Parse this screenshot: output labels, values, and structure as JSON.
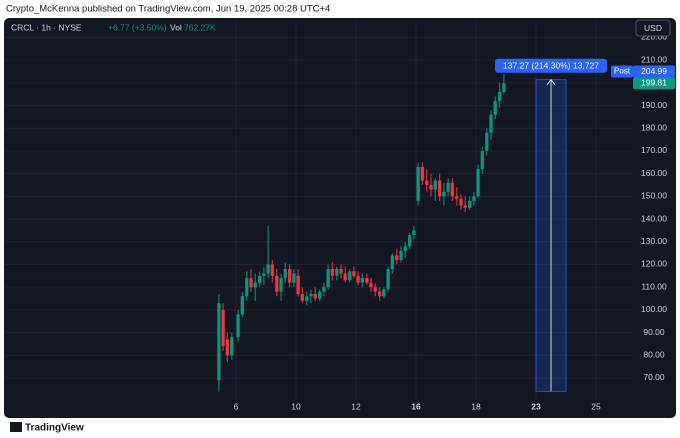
{
  "chart_data": {
    "type": "candlestick",
    "attribution": "Crypto_McKenna published on TradingView.com, Jun 19, 2025 00:28 UTC+4",
    "symbol": "CRCL · 1h · NYSE",
    "change": "+6.77 (+3.50%)",
    "volume_label": "Vol",
    "volume": "762.27K",
    "currency": "USD",
    "brand": "TradingView",
    "up_color": "#089981",
    "down_color": "#f23645",
    "grid": true,
    "xlim": [
      -6.7,
      14.2
    ],
    "xticks": [
      {
        "value": 1,
        "label": "6"
      },
      {
        "value": 3,
        "label": "10"
      },
      {
        "value": 5,
        "label": "12"
      },
      {
        "value": 7,
        "label": "16"
      },
      {
        "value": 9,
        "label": "18"
      },
      {
        "value": 11,
        "label": "23"
      },
      {
        "value": 13,
        "label": "25"
      }
    ],
    "ylim": [
      60.3,
      227.7
    ],
    "yticks": [
      {
        "value": 70,
        "label": "70.00"
      },
      {
        "value": 80,
        "label": "80.00"
      },
      {
        "value": 90,
        "label": "90.00"
      },
      {
        "value": 100,
        "label": "100.00"
      },
      {
        "value": 110,
        "label": "110.00"
      },
      {
        "value": 120,
        "label": "120.00"
      },
      {
        "value": 130,
        "label": "130.00"
      },
      {
        "value": 140,
        "label": "140.00"
      },
      {
        "value": 150,
        "label": "150.00"
      },
      {
        "value": 160,
        "label": "160.00"
      },
      {
        "value": 170,
        "label": "170.00"
      },
      {
        "value": 180,
        "label": "180.00"
      },
      {
        "value": 190,
        "label": "190.00"
      },
      {
        "value": 200,
        "label": "200.00"
      },
      {
        "value": 210,
        "label": "210.00"
      },
      {
        "value": 220,
        "label": "220.00"
      }
    ],
    "x": [
      0.43,
      0.57,
      0.71,
      0.86,
      1.07,
      1.21,
      1.36,
      1.5,
      1.64,
      1.79,
      1.93,
      2.07,
      2.21,
      2.36,
      2.5,
      2.64,
      2.79,
      2.93,
      3.07,
      3.21,
      3.36,
      3.5,
      3.64,
      3.79,
      3.93,
      4.07,
      4.21,
      4.36,
      4.5,
      4.64,
      4.79,
      4.93,
      5.07,
      5.21,
      5.36,
      5.5,
      5.64,
      5.79,
      5.93,
      6.07,
      6.21,
      6.36,
      6.5,
      6.64,
      6.79,
      6.93,
      7.07,
      7.21,
      7.36,
      7.5,
      7.64,
      7.79,
      7.93,
      8.07,
      8.21,
      8.36,
      8.5,
      8.64,
      8.79,
      8.93,
      9.07,
      9.21,
      9.36,
      9.5,
      9.64,
      9.79,
      9.93
    ],
    "open": [
      69,
      100,
      87,
      80,
      88,
      98,
      106,
      114,
      110,
      112,
      115,
      116,
      120,
      115,
      108,
      114,
      118,
      112,
      115,
      107,
      104,
      106,
      107,
      105,
      108,
      110,
      118,
      115,
      118,
      116,
      113,
      117,
      115,
      112,
      114,
      112,
      110,
      108,
      106,
      109,
      118,
      124,
      122,
      126,
      128,
      133,
      148,
      163,
      157,
      155,
      153,
      157,
      150,
      152,
      156,
      150,
      149,
      146,
      145,
      148,
      150,
      162,
      170,
      178,
      186,
      192,
      196
    ],
    "high": [
      107,
      103,
      90,
      90,
      100,
      108,
      117,
      118,
      116,
      117,
      119,
      137,
      122,
      118,
      116,
      121,
      120,
      118,
      118,
      110,
      108,
      109,
      110,
      109,
      112,
      120,
      121,
      119,
      120,
      119,
      118,
      119,
      117,
      116,
      116,
      114,
      112,
      110,
      110,
      119,
      125,
      127,
      128,
      130,
      134,
      137,
      165,
      165,
      162,
      160,
      158,
      160,
      156,
      158,
      158,
      154,
      151,
      150,
      150,
      152,
      164,
      172,
      180,
      188,
      194,
      200,
      204
    ],
    "low": [
      64,
      82,
      77,
      78,
      86,
      97,
      104,
      108,
      104,
      110,
      111,
      114,
      112,
      106,
      104,
      112,
      110,
      110,
      106,
      103,
      102,
      103,
      104,
      104,
      106,
      109,
      113,
      113,
      114,
      112,
      112,
      114,
      111,
      110,
      111,
      108,
      106,
      104,
      105,
      108,
      116,
      120,
      121,
      123,
      127,
      131,
      146,
      155,
      152,
      150,
      148,
      148,
      146,
      150,
      148,
      146,
      144,
      143,
      144,
      146,
      149,
      160,
      168,
      175,
      184,
      189,
      195
    ],
    "close": [
      103,
      84,
      80,
      88,
      98,
      106,
      114,
      110,
      112,
      115,
      116,
      120,
      115,
      108,
      114,
      118,
      112,
      116,
      107,
      104,
      106,
      107,
      105,
      108,
      110,
      118,
      115,
      118,
      116,
      113,
      117,
      115,
      112,
      114,
      112,
      110,
      108,
      106,
      109,
      118,
      124,
      122,
      126,
      128,
      133,
      135,
      163,
      157,
      155,
      153,
      157,
      150,
      152,
      156,
      150,
      149,
      146,
      145,
      148,
      150,
      162,
      170,
      178,
      186,
      192,
      196,
      199.81
    ],
    "last_price_label": "199.81",
    "post_label": "Post",
    "post_price": 204.99,
    "measure": {
      "label": "137.27 (214.30%) 13,727",
      "from": 64.13,
      "to": 201.4,
      "x_from": 11,
      "x_to": 12
    }
  }
}
